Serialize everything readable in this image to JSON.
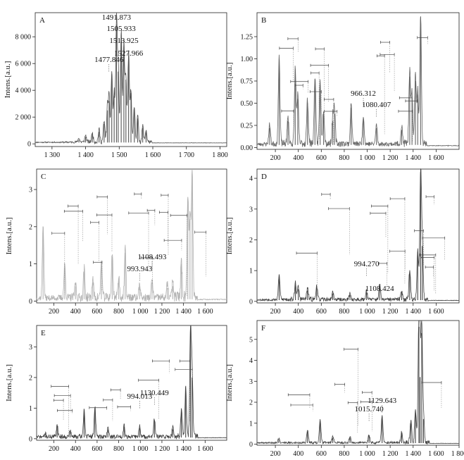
{
  "figure": {
    "ylabel_text": "Intens.[a.u.]"
  },
  "chart_data": [
    {
      "id": "A",
      "type": "line",
      "letter": "A",
      "ylabel": "Intens.[a.u.]",
      "xlabel": "",
      "xlim": [
        1250,
        1820
      ],
      "ylim": [
        -200,
        9800
      ],
      "xticks": [
        1300,
        1400,
        1500,
        1600,
        1700,
        1800
      ],
      "xtick_labels": [
        "1 300",
        "1 400",
        "1 500",
        "1 600",
        "1 700",
        "1 800"
      ],
      "yticks": [
        0,
        2000,
        4000,
        6000,
        8000
      ],
      "ytick_labels": [
        "0",
        "2 000",
        "4 000",
        "6 000",
        "8 000"
      ],
      "baseline": 100,
      "base_noise": 220,
      "seed": 11,
      "color": "#555555",
      "peaks": [
        [
          1455,
          1500
        ],
        [
          1477.846,
          5200
        ],
        [
          1491.873,
          8900
        ],
        [
          1497,
          5400
        ],
        [
          1505.933,
          8100
        ],
        [
          1513.925,
          7300
        ],
        [
          1520,
          4800
        ],
        [
          1527.966,
          6600
        ],
        [
          1535,
          3800
        ],
        [
          1545,
          2600
        ],
        [
          1555,
          1900
        ],
        [
          1570,
          1200
        ],
        [
          1580,
          900
        ],
        [
          1465,
          2500
        ],
        [
          1470,
          3200
        ],
        [
          1485,
          3600
        ],
        [
          1420,
          650
        ],
        [
          1440,
          900
        ],
        [
          1400,
          500
        ],
        [
          1380,
          300
        ]
      ],
      "labels": [
        {
          "text": "1491.873",
          "x": 1491.873
        },
        {
          "text": "1505.933",
          "x": 1505.933
        },
        {
          "text": "1513.925",
          "x": 1513.925
        },
        {
          "text": "1527.966",
          "x": 1527.966
        },
        {
          "text": "1477.846",
          "x": 1477.846
        }
      ],
      "tag_count": 0
    },
    {
      "id": "B",
      "type": "line",
      "letter": "B",
      "ylabel": "Intens.[a.u.]",
      "xlabel": "",
      "xlim": [
        40,
        1800
      ],
      "ylim": [
        -0.02,
        1.52
      ],
      "xticks": [
        200,
        400,
        600,
        800,
        1000,
        1200,
        1400,
        1600
      ],
      "xtick_labels": [
        "200",
        "400",
        "600",
        "800",
        "1 000",
        "1 200",
        "1 400",
        "1 600"
      ],
      "yticks": [
        0,
        0.25,
        0.5,
        0.75,
        1.0,
        1.25
      ],
      "ytick_labels": [
        "0.00",
        "0.25",
        "0.50",
        "0.75",
        "1.00",
        "1.25"
      ],
      "baseline": 0.03,
      "base_noise": 0.07,
      "seed": 23,
      "color": "#666666",
      "peaks": [
        [
          233,
          1.0
        ],
        [
          373,
          0.85
        ],
        [
          395,
          0.55
        ],
        [
          480,
          0.5
        ],
        [
          545,
          0.77
        ],
        [
          590,
          0.7
        ],
        [
          620,
          0.4
        ],
        [
          715,
          0.38
        ],
        [
          860,
          0.45
        ],
        [
          966.312,
          0.32
        ],
        [
          1080.407,
          0.22
        ],
        [
          1370,
          0.8
        ],
        [
          1420,
          0.75
        ],
        [
          1465,
          1.47
        ],
        [
          1440,
          0.6
        ],
        [
          150,
          0.22
        ],
        [
          310,
          0.3
        ],
        [
          700,
          0.3
        ],
        [
          1300,
          0.2
        ],
        [
          1390,
          0.55
        ]
      ],
      "labels": [
        {
          "text": "966.312",
          "x": 966.312
        },
        {
          "text": "1080.407",
          "x": 1080.407
        }
      ],
      "tag_count": 18
    },
    {
      "id": "C",
      "type": "line",
      "letter": "C",
      "ylabel": "Intens.[a.u.]",
      "xlabel": "",
      "xlim": [
        40,
        1800
      ],
      "ylim": [
        -0.05,
        3.55
      ],
      "xticks": [
        200,
        400,
        600,
        800,
        1000,
        1200,
        1400,
        1600
      ],
      "xtick_labels": [
        "200",
        "400",
        "600",
        "800",
        "1 000",
        "1 200",
        "1 400",
        "1 600"
      ],
      "yticks": [
        0,
        1,
        2,
        3
      ],
      "ytick_labels": [
        "0",
        "1",
        "2",
        "3"
      ],
      "baseline": 0.05,
      "base_noise": 0.25,
      "seed": 37,
      "color": "#b3b3b3",
      "peaks": [
        [
          100,
          2.0
        ],
        [
          300,
          0.9
        ],
        [
          400,
          0.4
        ],
        [
          480,
          0.8
        ],
        [
          560,
          0.5
        ],
        [
          640,
          1.0
        ],
        [
          740,
          1.2
        ],
        [
          800,
          0.6
        ],
        [
          860,
          1.3
        ],
        [
          993.943,
          0.4
        ],
        [
          1108.493,
          0.5
        ],
        [
          1380,
          1.0
        ],
        [
          1440,
          2.8
        ],
        [
          1480,
          3.4
        ],
        [
          1460,
          2.2
        ],
        [
          1250,
          0.35
        ],
        [
          1300,
          0.4
        ]
      ],
      "labels": [
        {
          "text": "1108.493",
          "x": 1108.493
        },
        {
          "text": "993.943",
          "x": 993.943
        }
      ],
      "tag_count": 16
    },
    {
      "id": "D",
      "type": "line",
      "letter": "D",
      "ylabel": "Intens.[a.u.]",
      "xlabel": "",
      "xlim": [
        40,
        1800
      ],
      "ylim": [
        -0.05,
        4.3
      ],
      "xticks": [
        200,
        400,
        600,
        800,
        1000,
        1200,
        1400,
        1600
      ],
      "xtick_labels": [
        "200",
        "400",
        "600",
        "800",
        "1 000",
        "1 200",
        "1 400",
        "1 600"
      ],
      "yticks": [
        0,
        1,
        2,
        3,
        4
      ],
      "ytick_labels": [
        "0",
        "1",
        "2",
        "3",
        "4"
      ],
      "baseline": 0.04,
      "base_noise": 0.15,
      "seed": 53,
      "color": "#444444",
      "peaks": [
        [
          233,
          0.8
        ],
        [
          375,
          0.55
        ],
        [
          400,
          0.4
        ],
        [
          480,
          0.35
        ],
        [
          560,
          0.45
        ],
        [
          700,
          0.25
        ],
        [
          994.27,
          0.3
        ],
        [
          1108.424,
          0.5
        ],
        [
          1370,
          0.9
        ],
        [
          1440,
          1.6
        ],
        [
          1465,
          4.2
        ],
        [
          1480,
          1.8
        ],
        [
          1300,
          0.3
        ],
        [
          850,
          0.2
        ]
      ],
      "labels": [
        {
          "text": "994.270",
          "x": 994.27
        },
        {
          "text": "1108.424",
          "x": 1108.424
        }
      ],
      "tag_count": 14
    },
    {
      "id": "E",
      "type": "line",
      "letter": "E",
      "ylabel": "Intens.[a.u.]",
      "xlabel": "",
      "xlim": [
        40,
        1800
      ],
      "ylim": [
        -0.05,
        3.7
      ],
      "xticks": [
        200,
        400,
        600,
        800,
        1000,
        1200,
        1400,
        1600
      ],
      "xtick_labels": [
        "200",
        "400",
        "600",
        "800",
        "1 000",
        "1 200",
        "1 400",
        "1 600"
      ],
      "yticks": [
        0,
        1,
        2,
        3
      ],
      "ytick_labels": [
        "0",
        "1",
        "2",
        "3"
      ],
      "baseline": 0.04,
      "base_noise": 0.18,
      "seed": 71,
      "color": "#444444",
      "peaks": [
        [
          230,
          0.4
        ],
        [
          480,
          0.9
        ],
        [
          580,
          1.0
        ],
        [
          700,
          0.3
        ],
        [
          850,
          0.4
        ],
        [
          994.013,
          0.35
        ],
        [
          1130.449,
          0.6
        ],
        [
          1380,
          0.9
        ],
        [
          1420,
          1.6
        ],
        [
          1465,
          3.6
        ],
        [
          1480,
          2.0
        ],
        [
          1300,
          0.3
        ],
        [
          350,
          0.2
        ],
        [
          120,
          0.1
        ]
      ],
      "labels": [
        {
          "text": "1130.449",
          "x": 1130.449
        },
        {
          "text": "994.013",
          "x": 994.013
        }
      ],
      "tag_count": 12
    },
    {
      "id": "F",
      "type": "line",
      "letter": "F",
      "ylabel": "Intens.[a.u.]",
      "xlabel": "",
      "xlim": [
        40,
        1800
      ],
      "ylim": [
        -0.05,
        5.9
      ],
      "xticks": [
        200,
        400,
        600,
        800,
        1000,
        1200,
        1400,
        1600,
        1800
      ],
      "xtick_labels": [
        "200",
        "400",
        "600",
        "800",
        "1 000",
        "1 200",
        "1 400",
        "1 600",
        "1 800"
      ],
      "yticks": [
        0,
        1,
        2,
        3,
        4,
        5
      ],
      "ytick_labels": [
        "0",
        "1",
        "2",
        "3",
        "4",
        "5"
      ],
      "baseline": 0.05,
      "base_noise": 0.15,
      "seed": 89,
      "color": "#444444",
      "peaks": [
        [
          230,
          0.2
        ],
        [
          480,
          0.6
        ],
        [
          590,
          1.1
        ],
        [
          700,
          0.3
        ],
        [
          850,
          0.3
        ],
        [
          1015.74,
          0.4
        ],
        [
          1129.643,
          1.3
        ],
        [
          1300,
          0.5
        ],
        [
          1380,
          1.0
        ],
        [
          1420,
          1.5
        ],
        [
          1450,
          5.6
        ],
        [
          1475,
          5.3
        ],
        [
          1460,
          3.2
        ],
        [
          1490,
          1.2
        ]
      ],
      "labels": [
        {
          "text": "1129.643",
          "x": 1129.643
        },
        {
          "text": "1015.740",
          "x": 1015.74
        }
      ],
      "tag_count": 8
    }
  ]
}
